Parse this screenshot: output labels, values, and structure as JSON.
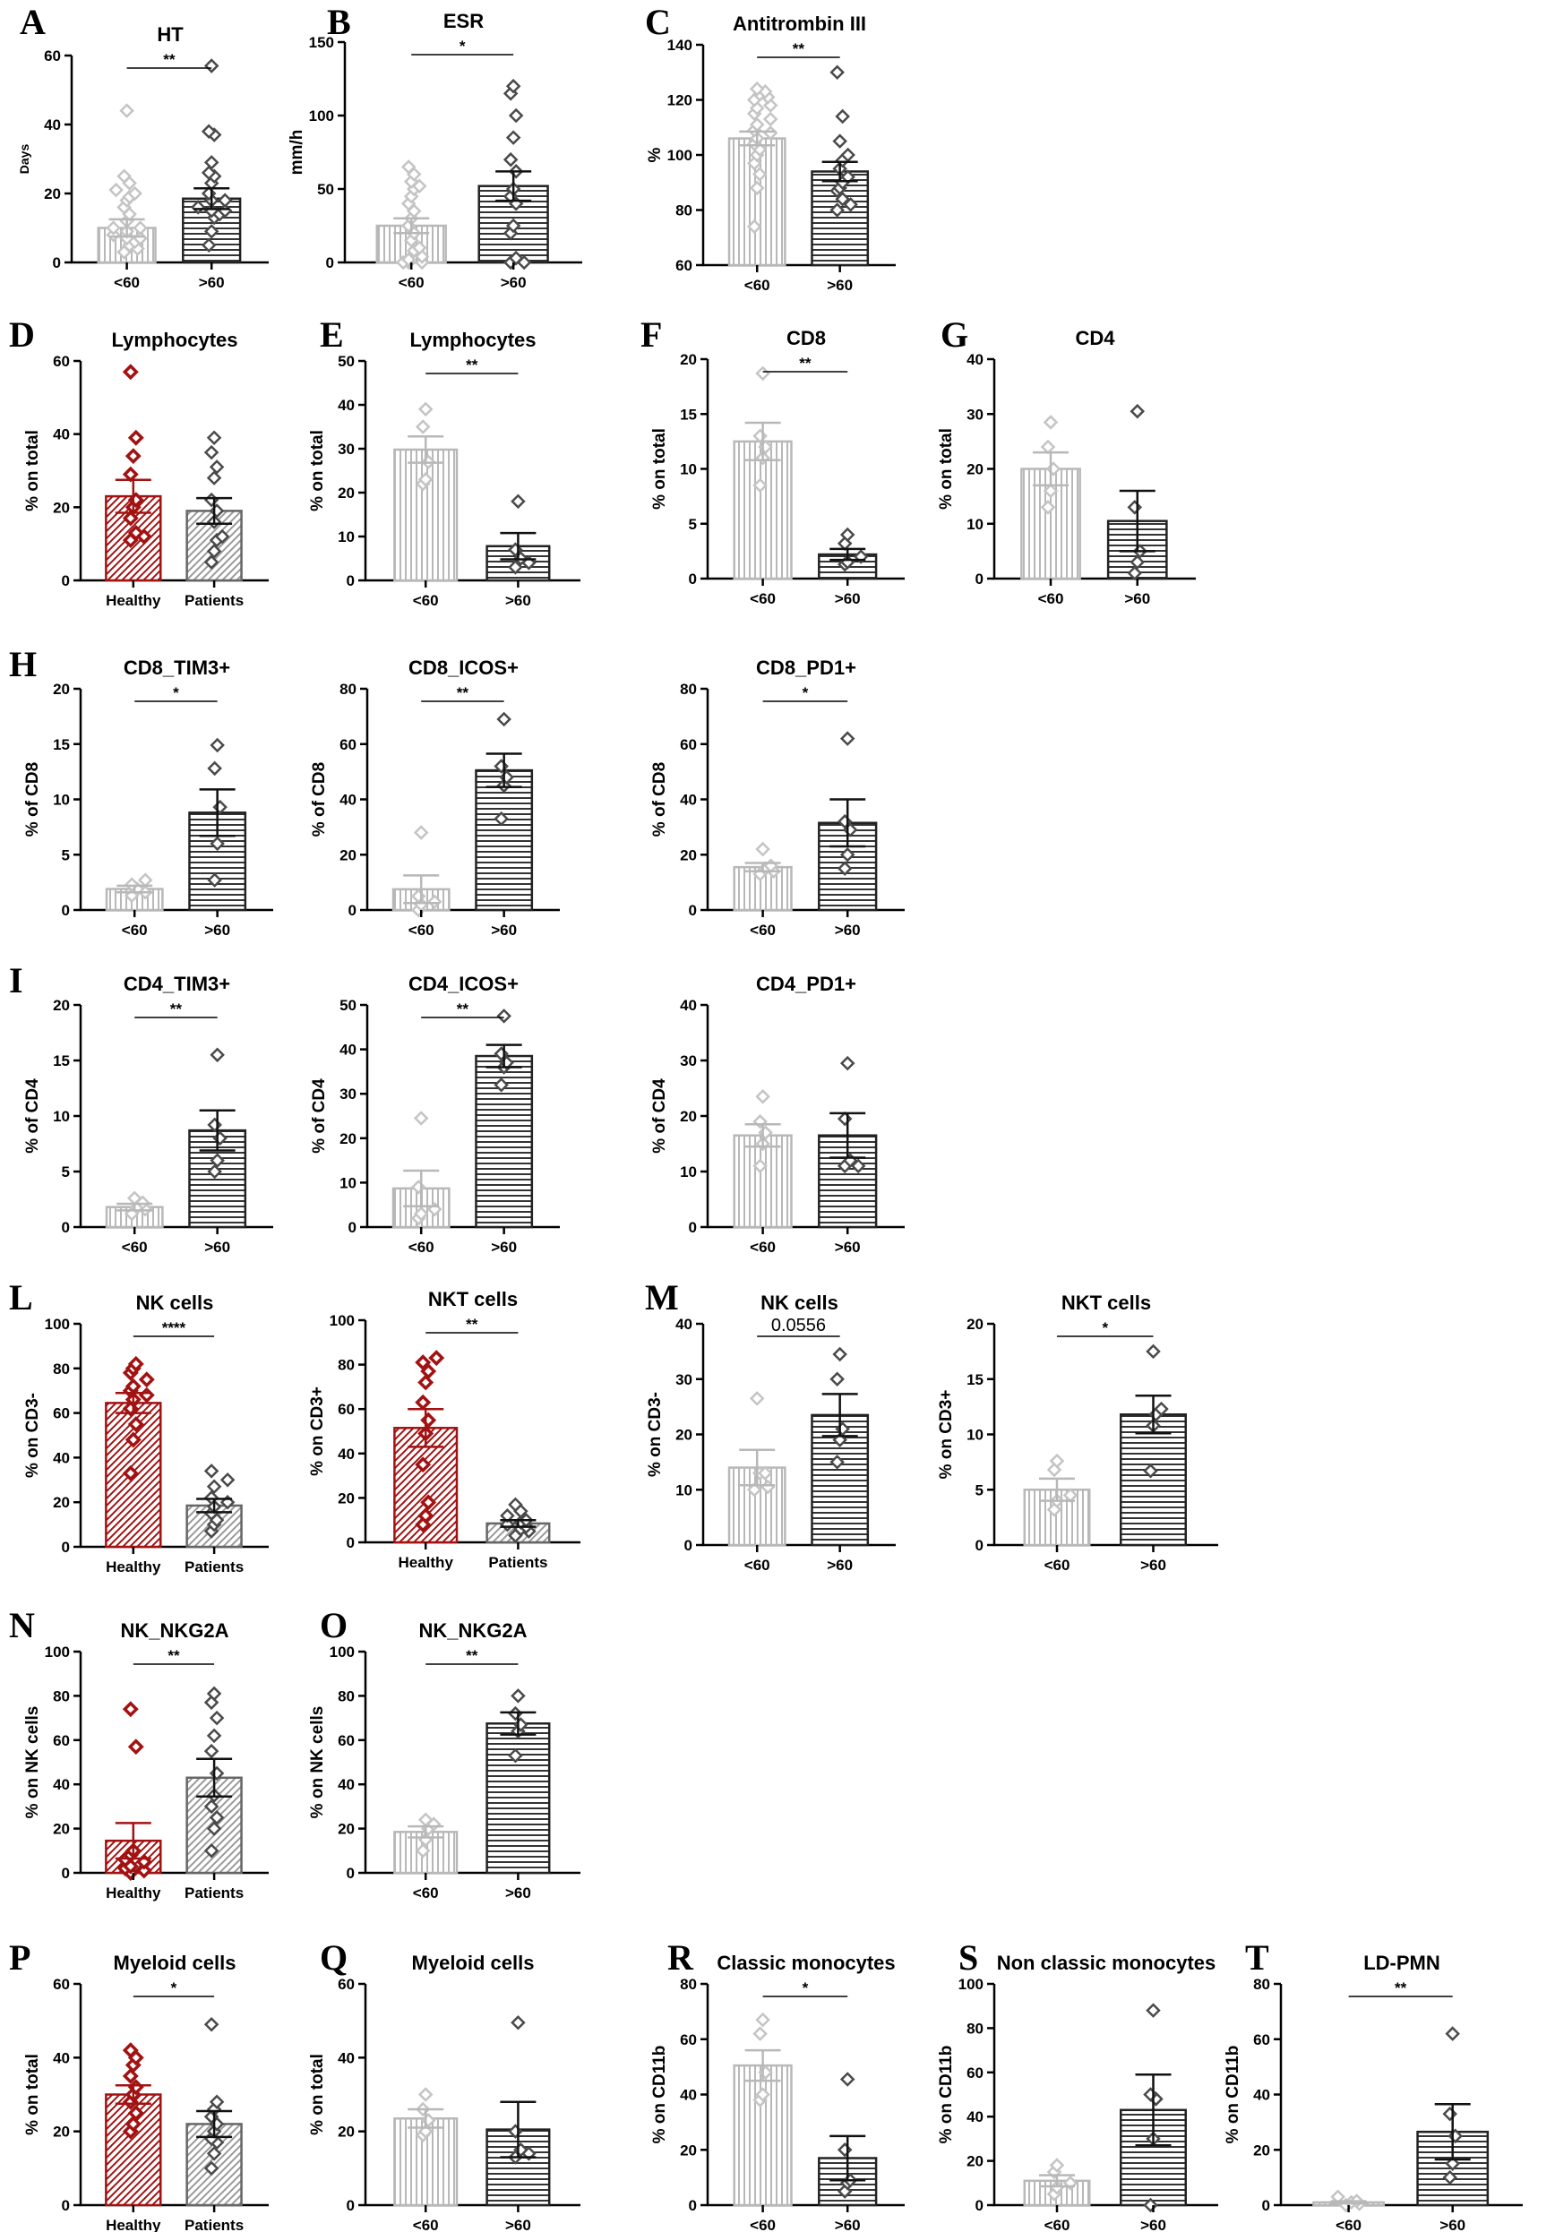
{
  "colors": {
    "grey": "#b8b8b8",
    "dark": "#333333",
    "red": "#a31212",
    "grey_point": "#c4c4c4",
    "dark_point": "#4a4a4a"
  },
  "chart_data": [
    {
      "id": "A",
      "panel_label": "A",
      "title": "HT",
      "ylabel": "Days",
      "ylim": [
        0,
        60
      ],
      "yticks": [
        0,
        20,
        40,
        60
      ],
      "type": "bar",
      "categories": [
        "<60",
        ">60"
      ],
      "style": [
        "grey_v",
        "dark_h"
      ],
      "means": [
        10,
        18.5
      ],
      "sems": [
        2.5,
        3
      ],
      "points": [
        [
          3,
          4,
          5,
          6,
          7,
          7,
          8,
          9,
          10,
          10,
          12,
          14,
          16,
          18,
          19,
          20,
          21,
          23,
          25,
          44
        ],
        [
          5,
          9,
          13,
          14,
          15,
          15,
          16,
          18,
          18,
          20,
          23,
          25,
          26,
          29,
          37,
          38,
          57
        ]
      ],
      "significance": "**"
    },
    {
      "id": "B",
      "panel_label": "B",
      "title": "ESR",
      "ylabel": "mm/h",
      "ylim": [
        0,
        150
      ],
      "yticks": [
        0,
        50,
        100,
        150
      ],
      "type": "bar",
      "categories": [
        "<60",
        ">60"
      ],
      "style": [
        "grey_v",
        "dark_h"
      ],
      "means": [
        25,
        52
      ],
      "sems": [
        5,
        10
      ],
      "points": [
        [
          0,
          0,
          0,
          2,
          4,
          8,
          10,
          15,
          20,
          25,
          30,
          35,
          40,
          45,
          50,
          52,
          55,
          60,
          65
        ],
        [
          0,
          0,
          3,
          20,
          25,
          40,
          45,
          50,
          62,
          70,
          85,
          100,
          115,
          120
        ]
      ],
      "significance": "*"
    },
    {
      "id": "C",
      "panel_label": "C",
      "title": "Antitrombin III",
      "ylabel": "%",
      "ylim": [
        60,
        140
      ],
      "yticks": [
        60,
        80,
        100,
        120,
        140
      ],
      "type": "bar",
      "categories": [
        "<60",
        ">60"
      ],
      "style": [
        "grey_v",
        "dark_h"
      ],
      "means": [
        106,
        94
      ],
      "sems": [
        2.5,
        3.5
      ],
      "points": [
        [
          74,
          88,
          93,
          97,
          100,
          102,
          104,
          106,
          108,
          109,
          111,
          113,
          115,
          117,
          118,
          120,
          121,
          122,
          123,
          124
        ],
        [
          80,
          82,
          84,
          87,
          88,
          90,
          92,
          95,
          98,
          100,
          105,
          114,
          130
        ]
      ],
      "significance": "**"
    },
    {
      "id": "D",
      "panel_label": "D",
      "title": "Lymphocytes",
      "ylabel": "% on total",
      "ylim": [
        0,
        60
      ],
      "yticks": [
        0,
        20,
        40,
        60
      ],
      "type": "bar",
      "categories": [
        "Healthy",
        "Patients"
      ],
      "style": [
        "red_d",
        "grey_d"
      ],
      "means": [
        23,
        19
      ],
      "sems": [
        4.5,
        3.5
      ],
      "points": [
        [
          11,
          12,
          13,
          17,
          20,
          22,
          29,
          34,
          39,
          57
        ],
        [
          5,
          8,
          11,
          12,
          16,
          19,
          22,
          28,
          31,
          35,
          39
        ]
      ],
      "significance": ""
    },
    {
      "id": "E",
      "panel_label": "E",
      "title": "Lymphocytes",
      "ylabel": "% on total",
      "ylim": [
        0,
        50
      ],
      "yticks": [
        0,
        10,
        20,
        30,
        40,
        50
      ],
      "type": "bar",
      "categories": [
        "<60",
        ">60"
      ],
      "style": [
        "grey_v",
        "dark_h"
      ],
      "means": [
        29.8,
        7.8
      ],
      "sems": [
        3,
        3
      ],
      "points": [
        [
          22,
          23,
          27,
          35,
          39
        ],
        [
          3,
          4,
          5,
          7,
          18
        ]
      ],
      "significance": "**"
    },
    {
      "id": "F",
      "panel_label": "F",
      "title": "CD8",
      "ylabel": "% on total",
      "ylim": [
        0,
        20
      ],
      "yticks": [
        0,
        5,
        10,
        15,
        20
      ],
      "type": "bar",
      "categories": [
        "<60",
        ">60"
      ],
      "style": [
        "grey_v",
        "dark_h"
      ],
      "means": [
        12.5,
        2.2
      ],
      "sems": [
        1.7,
        0.5
      ],
      "points": [
        [
          8.5,
          11,
          12,
          13,
          18.7
        ],
        [
          1.3,
          1.5,
          2,
          3.2,
          4
        ]
      ],
      "significance": "**"
    },
    {
      "id": "G",
      "panel_label": "G",
      "title": "CD4",
      "ylabel": "% on total",
      "ylim": [
        0,
        40
      ],
      "yticks": [
        0,
        10,
        20,
        30,
        40
      ],
      "type": "bar",
      "categories": [
        "<60",
        ">60"
      ],
      "style": [
        "grey_v",
        "dark_h"
      ],
      "means": [
        20,
        10.5
      ],
      "sems": [
        3,
        5.5
      ],
      "points": [
        [
          13,
          16,
          20,
          24,
          28.5
        ],
        [
          1,
          3,
          5,
          13,
          30.5
        ]
      ],
      "significance": ""
    },
    {
      "id": "H1",
      "panel_label": "H",
      "title": "CD8_TIM3+",
      "ylabel": "% of CD8",
      "ylim": [
        0,
        20
      ],
      "yticks": [
        0,
        5,
        10,
        15,
        20
      ],
      "type": "bar",
      "categories": [
        "<60",
        ">60"
      ],
      "style": [
        "grey_v",
        "dark_h"
      ],
      "means": [
        1.9,
        8.8
      ],
      "sems": [
        0.3,
        2.1
      ],
      "points": [
        [
          1.3,
          1.6,
          1.9,
          2.3,
          2.7
        ],
        [
          2.7,
          6,
          9.3,
          12.8,
          14.9
        ]
      ],
      "significance": "*"
    },
    {
      "id": "H2",
      "panel_label": "",
      "title": "CD8_ICOS+",
      "ylabel": "% of CD8",
      "ylim": [
        0,
        80
      ],
      "yticks": [
        0,
        20,
        40,
        60,
        80
      ],
      "type": "bar",
      "categories": [
        "<60",
        ">60"
      ],
      "style": [
        "grey_v",
        "dark_h"
      ],
      "means": [
        7.5,
        50.5
      ],
      "sems": [
        5,
        6
      ],
      "points": [
        [
          0,
          2,
          3,
          5,
          28
        ],
        [
          33,
          45,
          48,
          52,
          69
        ]
      ],
      "significance": "**"
    },
    {
      "id": "H3",
      "panel_label": "",
      "title": "CD8_PD1+",
      "ylabel": "% of CD8",
      "ylim": [
        0,
        80
      ],
      "yticks": [
        0,
        20,
        40,
        60,
        80
      ],
      "type": "bar",
      "categories": [
        "<60",
        ">60"
      ],
      "style": [
        "grey_v",
        "dark_h"
      ],
      "means": [
        15.5,
        31.5
      ],
      "sems": [
        1.5,
        8.5
      ],
      "points": [
        [
          13,
          14,
          15,
          16,
          22
        ],
        [
          15,
          20,
          29,
          32,
          62
        ]
      ],
      "significance": "*"
    },
    {
      "id": "I1",
      "panel_label": "I",
      "title": "CD4_TIM3+",
      "ylabel": "% of CD4",
      "ylim": [
        0,
        20
      ],
      "yticks": [
        0,
        5,
        10,
        15,
        20
      ],
      "type": "bar",
      "categories": [
        "<60",
        ">60"
      ],
      "style": [
        "grey_v",
        "dark_h"
      ],
      "means": [
        1.8,
        8.7
      ],
      "sems": [
        0.3,
        1.8
      ],
      "points": [
        [
          1.2,
          1.6,
          1.8,
          2.2,
          2.6
        ],
        [
          5,
          6,
          8,
          9.2,
          15.5
        ]
      ],
      "significance": "**"
    },
    {
      "id": "I2",
      "panel_label": "",
      "title": "CD4_ICOS+",
      "ylabel": "% of CD4",
      "ylim": [
        0,
        50
      ],
      "yticks": [
        0,
        10,
        20,
        30,
        40,
        50
      ],
      "type": "bar",
      "categories": [
        "<60",
        ">60"
      ],
      "style": [
        "grey_v",
        "dark_h"
      ],
      "means": [
        8.7,
        38.5
      ],
      "sems": [
        4,
        2.5
      ],
      "points": [
        [
          2,
          3,
          4,
          9,
          24.5
        ],
        [
          32,
          36,
          37,
          39,
          47.5
        ]
      ],
      "significance": "**"
    },
    {
      "id": "I3",
      "panel_label": "",
      "title": "CD4_PD1+",
      "ylabel": "% of CD4",
      "ylim": [
        0,
        40
      ],
      "yticks": [
        0,
        10,
        20,
        30,
        40
      ],
      "type": "bar",
      "categories": [
        "<60",
        ">60"
      ],
      "style": [
        "grey_v",
        "dark_h"
      ],
      "means": [
        16.5,
        16.5
      ],
      "sems": [
        2,
        4
      ],
      "points": [
        [
          11,
          15,
          17,
          19,
          23.5
        ],
        [
          11,
          11,
          12,
          19.5,
          29.5
        ]
      ],
      "significance": ""
    },
    {
      "id": "L1",
      "panel_label": "L",
      "title": "NK cells",
      "ylabel": "% on CD3-",
      "ylim": [
        0,
        100
      ],
      "yticks": [
        0,
        20,
        40,
        60,
        80,
        100
      ],
      "type": "bar",
      "categories": [
        "Healthy",
        "Patients"
      ],
      "style": [
        "red_d",
        "grey_d"
      ],
      "means": [
        64.5,
        18.5
      ],
      "sems": [
        4.5,
        3
      ],
      "points": [
        [
          33,
          48,
          55,
          62,
          66,
          68,
          70,
          72,
          75,
          78,
          80,
          82
        ],
        [
          7,
          10,
          12,
          15,
          18,
          20,
          22,
          27,
          30,
          34
        ]
      ],
      "significance": "****"
    },
    {
      "id": "L2",
      "panel_label": "",
      "title": "NKT cells",
      "ylabel": "% on CD3+",
      "ylim": [
        0,
        100
      ],
      "yticks": [
        0,
        20,
        40,
        60,
        80,
        100
      ],
      "type": "bar",
      "categories": [
        "Healthy",
        "Patients"
      ],
      "style": [
        "red_d",
        "grey_d"
      ],
      "means": [
        51.5,
        8.5
      ],
      "sems": [
        8.5,
        1.5
      ],
      "points": [
        [
          8,
          12,
          18,
          35,
          49,
          55,
          63,
          72,
          77,
          81,
          83
        ],
        [
          3,
          5,
          6,
          7,
          8,
          9,
          10,
          12,
          14,
          17
        ]
      ],
      "significance": "**"
    },
    {
      "id": "M1",
      "panel_label": "M",
      "title": "NK cells",
      "ylabel": "% on CD3-",
      "ylim": [
        0,
        40
      ],
      "yticks": [
        0,
        10,
        20,
        30,
        40
      ],
      "type": "bar",
      "categories": [
        "<60",
        ">60"
      ],
      "style": [
        "grey_v",
        "dark_h"
      ],
      "means": [
        14,
        23.5
      ],
      "sems": [
        3.2,
        3.8
      ],
      "points": [
        [
          10,
          10.5,
          13,
          13,
          26.5
        ],
        [
          15,
          19,
          21,
          30,
          34.5
        ]
      ],
      "significance": "0.0556"
    },
    {
      "id": "M2",
      "panel_label": "",
      "title": "NKT cells",
      "ylabel": "% on CD3+",
      "ylim": [
        0,
        20
      ],
      "yticks": [
        0,
        5,
        10,
        15,
        20
      ],
      "type": "bar",
      "categories": [
        "<60",
        ">60"
      ],
      "style": [
        "grey_v",
        "dark_h"
      ],
      "means": [
        5,
        11.8
      ],
      "sems": [
        1,
        1.7
      ],
      "points": [
        [
          3.2,
          4,
          4.5,
          6.8,
          7.6
        ],
        [
          6.7,
          10.8,
          11.8,
          12.3,
          17.5
        ]
      ],
      "significance": "*"
    },
    {
      "id": "N",
      "panel_label": "N",
      "title": "NK_NKG2A",
      "ylabel": "% on NK cells",
      "ylim": [
        0,
        100
      ],
      "yticks": [
        0,
        20,
        40,
        60,
        80,
        100
      ],
      "type": "bar",
      "categories": [
        "Healthy",
        "Patients"
      ],
      "style": [
        "red_d",
        "grey_d"
      ],
      "means": [
        14.5,
        43
      ],
      "sems": [
        8,
        8.5
      ],
      "points": [
        [
          0,
          1,
          2,
          3,
          5,
          6,
          8,
          10,
          57,
          74
        ],
        [
          10,
          20,
          25,
          30,
          35,
          45,
          55,
          62,
          70,
          77,
          81
        ]
      ],
      "significance": "**"
    },
    {
      "id": "O",
      "panel_label": "O",
      "title": "NK_NKG2A",
      "ylabel": "% on NK cells",
      "ylim": [
        0,
        100
      ],
      "yticks": [
        0,
        20,
        40,
        60,
        80,
        100
      ],
      "type": "bar",
      "categories": [
        "<60",
        ">60"
      ],
      "style": [
        "grey_v",
        "dark_h"
      ],
      "means": [
        18.5,
        67.5
      ],
      "sems": [
        2.5,
        5
      ],
      "points": [
        [
          10,
          15,
          20,
          22,
          24
        ],
        [
          53,
          64,
          67,
          72,
          80
        ]
      ],
      "significance": "**"
    },
    {
      "id": "P",
      "panel_label": "P",
      "title": "Myeloid cells",
      "ylabel": "% on total",
      "ylim": [
        0,
        60
      ],
      "yticks": [
        0,
        20,
        40,
        60
      ],
      "type": "bar",
      "categories": [
        "Healthy",
        "Patients"
      ],
      "style": [
        "red_d",
        "grey_d"
      ],
      "means": [
        30,
        22
      ],
      "sems": [
        2.5,
        3.5
      ],
      "points": [
        [
          20,
          22,
          25,
          28,
          30,
          32,
          35,
          38,
          40,
          42
        ],
        [
          10,
          14,
          17,
          18,
          20,
          22,
          24,
          26,
          28,
          49
        ]
      ],
      "significance": "*"
    },
    {
      "id": "Q",
      "panel_label": "Q",
      "title": "Myeloid cells",
      "ylabel": "% on total",
      "ylim": [
        0,
        60
      ],
      "yticks": [
        0,
        20,
        40,
        60
      ],
      "type": "bar",
      "categories": [
        "<60",
        ">60"
      ],
      "style": [
        "grey_v",
        "dark_h"
      ],
      "means": [
        23.5,
        20.5
      ],
      "sems": [
        2.5,
        7.5
      ],
      "points": [
        [
          19,
          20,
          23,
          26,
          30
        ],
        [
          13,
          14,
          15,
          20,
          49.5
        ]
      ],
      "significance": ""
    },
    {
      "id": "R",
      "panel_label": "R",
      "title": "Classic monocytes",
      "ylabel": "% on CD11b",
      "ylim": [
        0,
        80
      ],
      "yticks": [
        0,
        20,
        40,
        60,
        80
      ],
      "type": "bar",
      "categories": [
        "<60",
        ">60"
      ],
      "style": [
        "grey_v",
        "dark_h"
      ],
      "means": [
        50.5,
        17
      ],
      "sems": [
        5.5,
        8
      ],
      "points": [
        [
          38,
          40,
          48,
          62,
          67
        ],
        [
          5,
          8,
          9,
          20,
          45.5
        ]
      ],
      "significance": "*"
    },
    {
      "id": "S",
      "panel_label": "S",
      "title": "Non classic monocytes",
      "ylabel": "% on CD11b",
      "ylim": [
        0,
        100
      ],
      "yticks": [
        0,
        20,
        40,
        60,
        80,
        100
      ],
      "type": "bar",
      "categories": [
        "<60",
        ">60"
      ],
      "style": [
        "grey_v",
        "dark_h"
      ],
      "means": [
        11,
        43
      ],
      "sems": [
        2.5,
        16
      ],
      "points": [
        [
          5,
          8,
          10,
          15,
          18
        ],
        [
          0,
          30,
          48,
          50,
          88
        ]
      ],
      "significance": ""
    },
    {
      "id": "T",
      "panel_label": "T",
      "title": "LD-PMN",
      "ylabel": "% on CD11b",
      "ylim": [
        0,
        80
      ],
      "yticks": [
        0,
        20,
        40,
        60,
        80
      ],
      "type": "bar",
      "categories": [
        "<60",
        ">60"
      ],
      "style": [
        "grey_v",
        "dark_h"
      ],
      "means": [
        1,
        26.5
      ],
      "sems": [
        0.4,
        10
      ],
      "points": [
        [
          0,
          0.5,
          1,
          1.5,
          3
        ],
        [
          10,
          15,
          25,
          33,
          62
        ]
      ],
      "significance": "**"
    }
  ]
}
